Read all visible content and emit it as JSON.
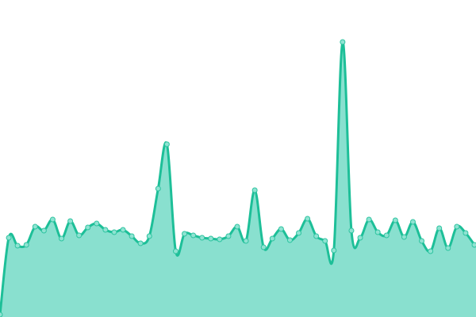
{
  "chart_data": {
    "type": "area",
    "title": "",
    "xlabel": "",
    "ylabel": "",
    "grid": false,
    "legend": "none",
    "ylim": [
      0,
      400
    ],
    "x": [
      0,
      1,
      2,
      3,
      4,
      5,
      6,
      7,
      8,
      9,
      10,
      11,
      12,
      13,
      14,
      15,
      16,
      17,
      18,
      19,
      20,
      21,
      22,
      23,
      24,
      25,
      26,
      27,
      28,
      29,
      30,
      31,
      32,
      33,
      34,
      35,
      36,
      37,
      38,
      39,
      40,
      41,
      42,
      43,
      44,
      45,
      46,
      47,
      48,
      49,
      50,
      51,
      52,
      53,
      54
    ],
    "values": [
      3,
      100,
      90,
      91,
      114,
      109,
      123,
      99,
      121,
      103,
      113,
      118,
      110,
      107,
      110,
      102,
      93,
      102,
      162,
      218,
      83,
      105,
      103,
      100,
      99,
      98,
      102,
      114,
      96,
      160,
      88,
      99,
      111,
      97,
      106,
      124,
      102,
      96,
      84,
      347,
      109,
      100,
      123,
      107,
      103,
      122,
      101,
      120,
      96,
      83,
      112,
      87,
      114,
      106,
      91
    ],
    "colors": {
      "line": "#1dbf98",
      "fill": "#89e0cf",
      "marker_fill": "#8fe3d2",
      "marker_stroke": "#2ec4a0"
    }
  }
}
